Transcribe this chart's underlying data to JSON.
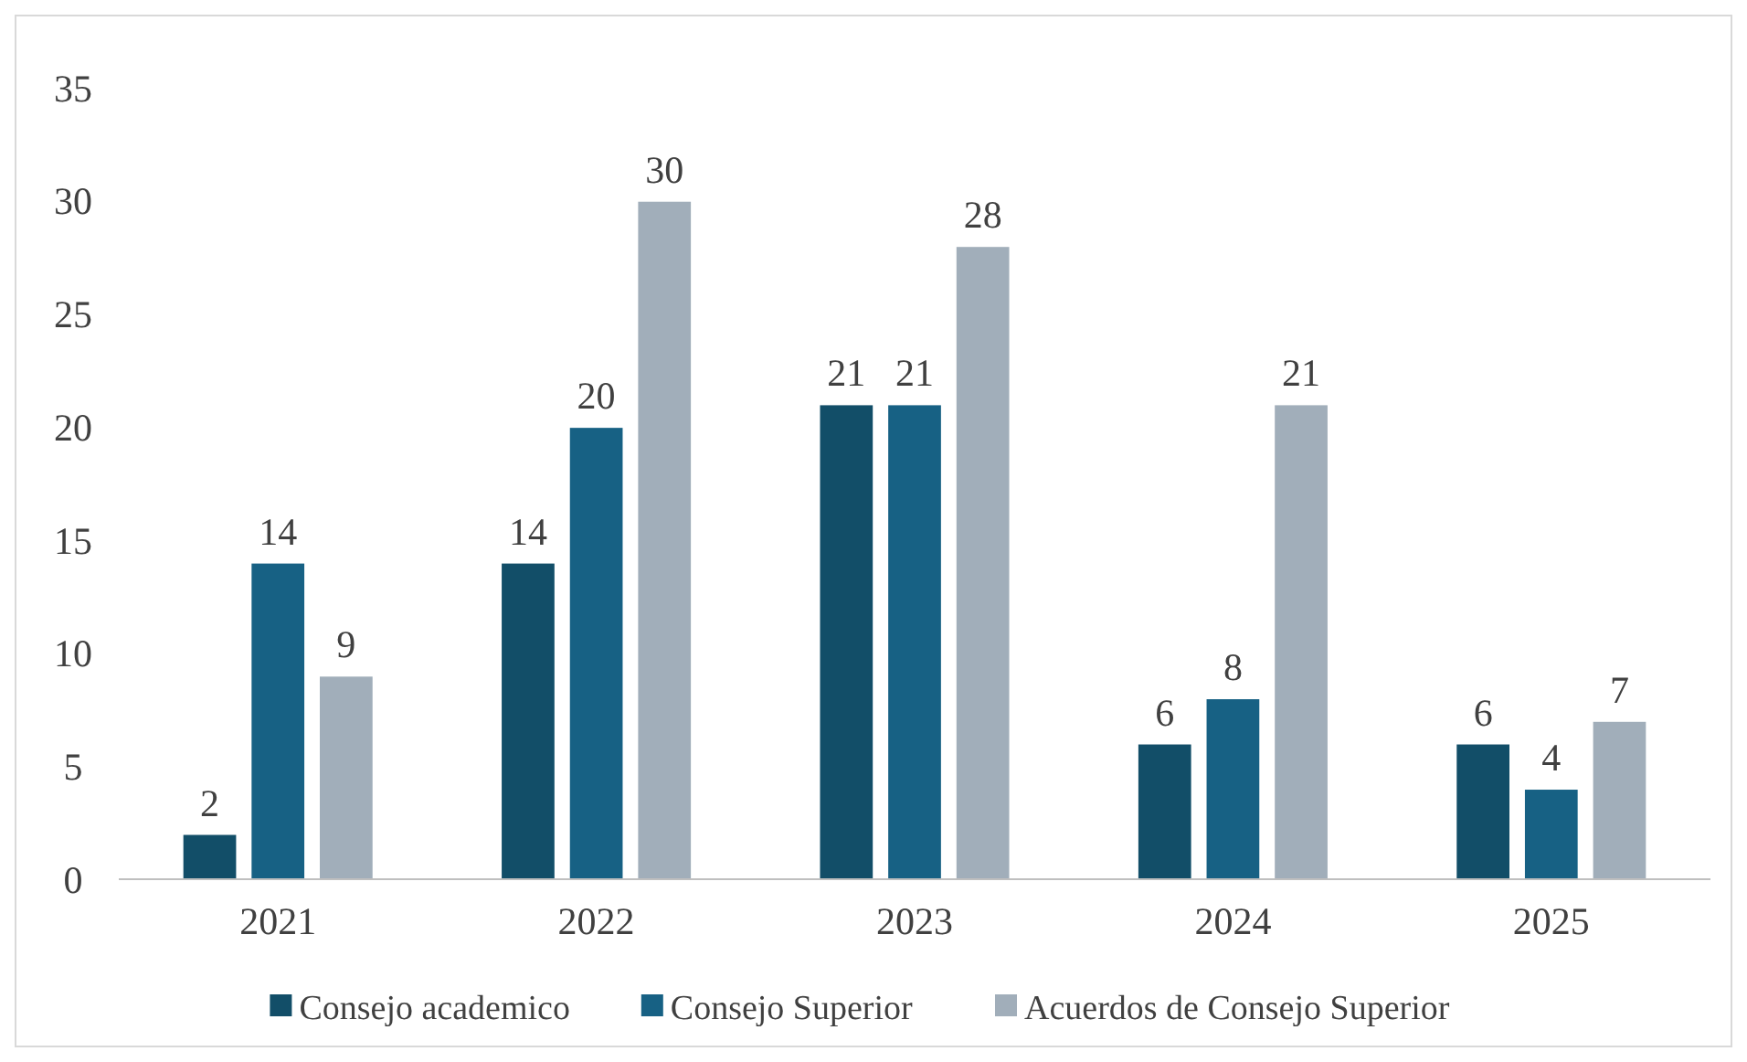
{
  "chart_data": {
    "type": "bar",
    "categories": [
      "2021",
      "2022",
      "2023",
      "2024",
      "2025"
    ],
    "series": [
      {
        "name": "Consejo academico",
        "color": "#124e68",
        "values": [
          2,
          14,
          21,
          6,
          6
        ]
      },
      {
        "name": "Consejo Superior",
        "color": "#176184",
        "values": [
          14,
          20,
          21,
          8,
          4
        ]
      },
      {
        "name": "Acuerdos de Consejo Superior",
        "color": "#a1aeba",
        "values": [
          9,
          30,
          28,
          21,
          7
        ]
      }
    ],
    "ylim": [
      0,
      35
    ],
    "yticks": [
      0,
      5,
      10,
      15,
      20,
      25,
      30,
      35
    ],
    "grid": false,
    "legend": "bottom",
    "data_labels": true
  }
}
